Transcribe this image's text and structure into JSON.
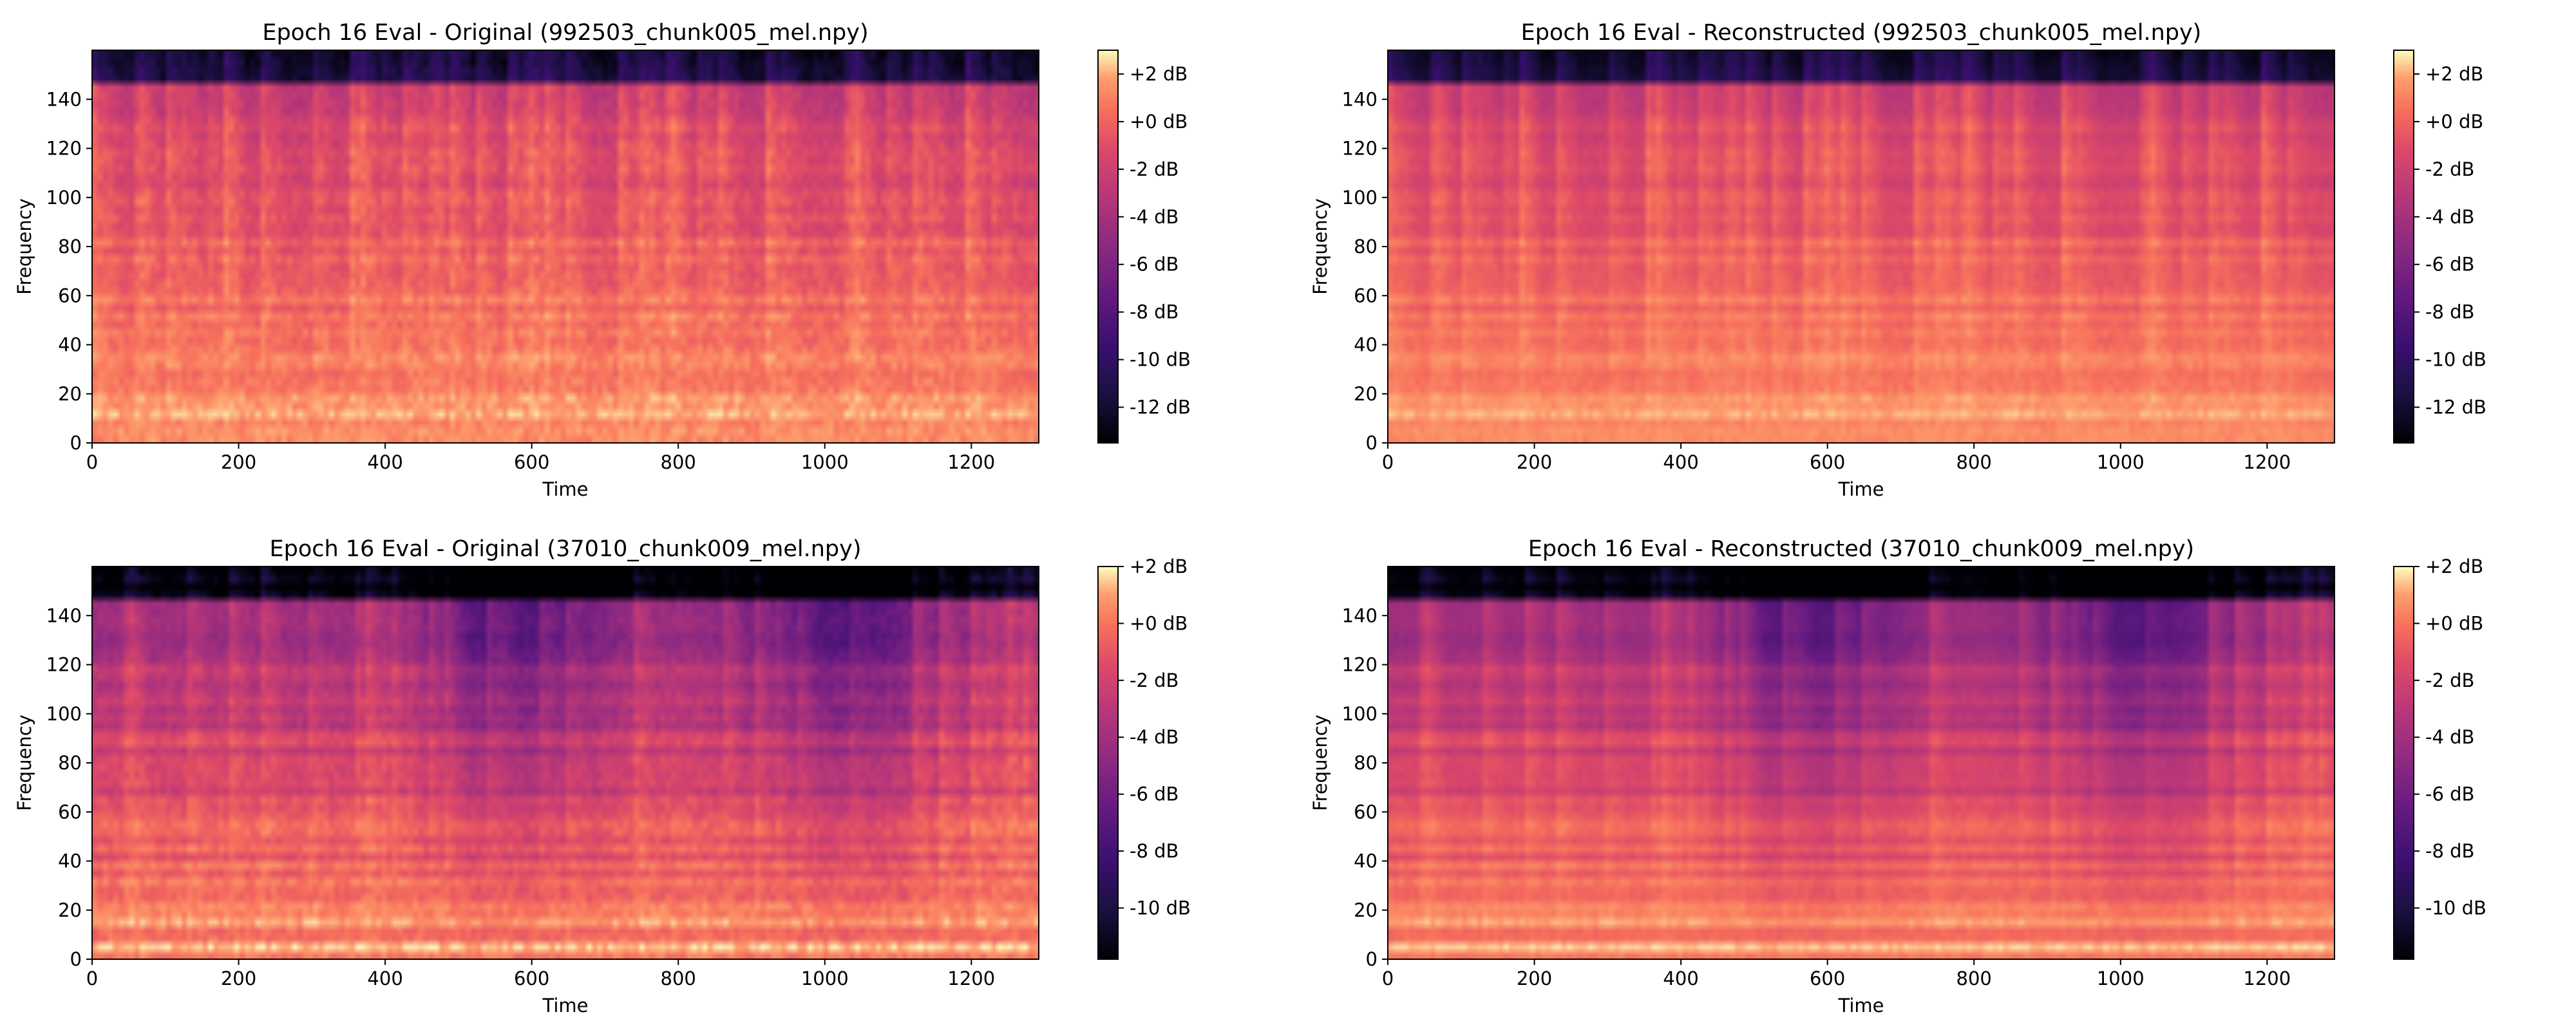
{
  "figure": {
    "layout": "2x2 grid of mel-spectrogram heatmaps with colorbars"
  },
  "chart_data": [
    {
      "type": "heatmap",
      "title": "Epoch 16 Eval - Original (992503_chunk005_mel.npy)",
      "xlabel": "Time",
      "ylabel": "Frequency",
      "xlim": [
        0,
        1292
      ],
      "ylim": [
        0,
        160
      ],
      "x_ticks": [
        "0",
        "200",
        "400",
        "600",
        "800",
        "1000",
        "1200"
      ],
      "y_ticks": [
        "0",
        "20",
        "40",
        "60",
        "80",
        "100",
        "120",
        "140"
      ],
      "colorbar": {
        "range": [
          -13.5,
          3.0
        ],
        "ticks": [
          "+2 dB",
          "+0 dB",
          "-2 dB",
          "-4 dB",
          "-6 dB",
          "-8 dB",
          "-10 dB",
          "-12 dB"
        ],
        "colormap": "magma"
      }
    },
    {
      "type": "heatmap",
      "title": "Epoch 16 Eval - Reconstructed (992503_chunk005_mel.npy)",
      "xlabel": "Time",
      "ylabel": "Frequency",
      "xlim": [
        0,
        1292
      ],
      "ylim": [
        0,
        160
      ],
      "x_ticks": [
        "0",
        "200",
        "400",
        "600",
        "800",
        "1000",
        "1200"
      ],
      "y_ticks": [
        "0",
        "20",
        "40",
        "60",
        "80",
        "100",
        "120",
        "140"
      ],
      "colorbar": {
        "range": [
          -13.5,
          3.0
        ],
        "ticks": [
          "+2 dB",
          "+0 dB",
          "-2 dB",
          "-4 dB",
          "-6 dB",
          "-8 dB",
          "-10 dB",
          "-12 dB"
        ],
        "colormap": "magma"
      }
    },
    {
      "type": "heatmap",
      "title": "Epoch 16 Eval - Original (37010_chunk009_mel.npy)",
      "xlabel": "Time",
      "ylabel": "Frequency",
      "xlim": [
        0,
        1292
      ],
      "ylim": [
        0,
        160
      ],
      "x_ticks": [
        "0",
        "200",
        "400",
        "600",
        "800",
        "1000",
        "1200"
      ],
      "y_ticks": [
        "0",
        "20",
        "40",
        "60",
        "80",
        "100",
        "120",
        "140"
      ],
      "colorbar": {
        "range": [
          -11.8,
          2.0
        ],
        "ticks": [
          "+2 dB",
          "+0 dB",
          "-2 dB",
          "-4 dB",
          "-6 dB",
          "-8 dB",
          "-10 dB"
        ],
        "colormap": "magma"
      }
    },
    {
      "type": "heatmap",
      "title": "Epoch 16 Eval - Reconstructed (37010_chunk009_mel.npy)",
      "xlabel": "Time",
      "ylabel": "Frequency",
      "xlim": [
        0,
        1292
      ],
      "ylim": [
        0,
        160
      ],
      "x_ticks": [
        "0",
        "200",
        "400",
        "600",
        "800",
        "1000",
        "1200"
      ],
      "y_ticks": [
        "0",
        "20",
        "40",
        "60",
        "80",
        "100",
        "120",
        "140"
      ],
      "colorbar": {
        "range": [
          -11.8,
          2.0
        ],
        "ticks": [
          "+2 dB",
          "+0 dB",
          "-2 dB",
          "-4 dB",
          "-6 dB",
          "-8 dB",
          "-10 dB"
        ],
        "colormap": "magma"
      }
    }
  ]
}
